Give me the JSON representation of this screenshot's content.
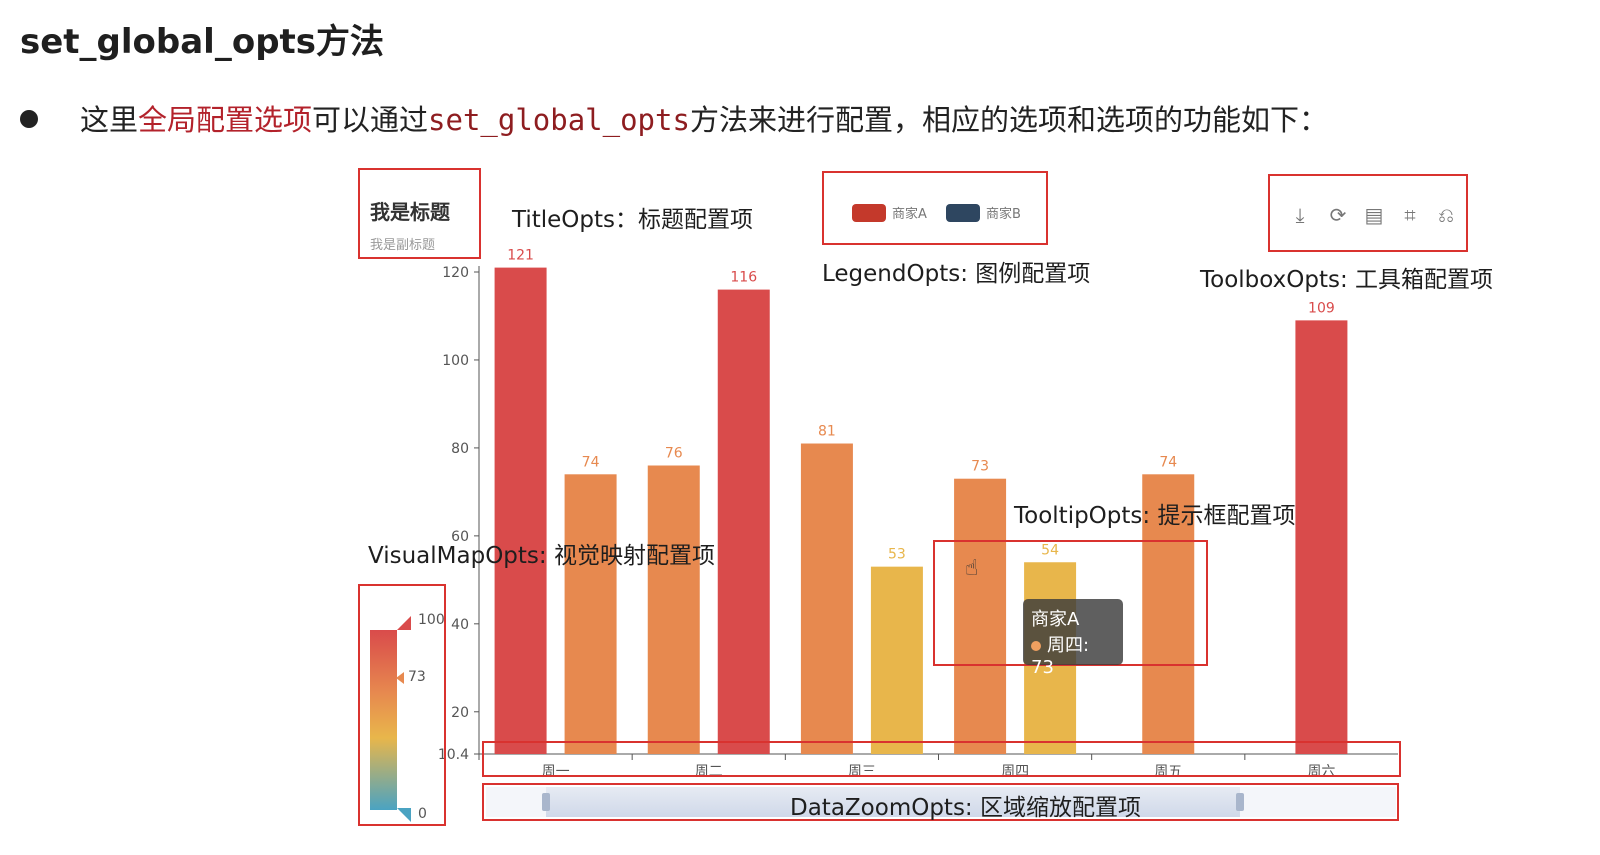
{
  "heading": "set_global_opts方法",
  "bullet": {
    "part1": "这里",
    "highlight": "全局配置选项",
    "part2": "可以通过",
    "code": "set_global_opts",
    "part3": "方法来进行配置，相应的选项和选项的功能如下："
  },
  "captions": {
    "title_opts": "TitleOpts：标题配置项",
    "legend_opts": "LegendOpts: 图例配置项",
    "toolbox_opts": "ToolboxOpts: 工具箱配置项",
    "tooltip_opts": "TooltipOpts: 提示框配置项",
    "visualmap_opts": "VisualMapOpts: 视觉映射配置项",
    "datazoom_opts": "DataZoomOpts: 区域缩放配置项"
  },
  "chart_title": {
    "main": "我是标题",
    "sub": "我是副标题"
  },
  "legend": [
    "商家A",
    "商家B"
  ],
  "toolbox_icons": [
    "download-icon",
    "refresh-icon",
    "data-view-icon",
    "zoom-icon",
    "zoom-reset-icon"
  ],
  "tooltip": {
    "series": "商家A",
    "line": "周四: 73"
  },
  "visual_map": {
    "max_label": "100",
    "min_label": "0",
    "current": "73"
  },
  "chart_data": {
    "type": "bar",
    "categories": [
      "周一",
      "周二",
      "周三",
      "周四",
      "周五",
      "周六"
    ],
    "series": [
      {
        "name": "商家A",
        "values": [
          121,
          76,
          81,
          73,
          74,
          109
        ]
      },
      {
        "name": "商家B",
        "values": [
          74,
          116,
          53,
          54,
          null,
          null
        ]
      }
    ],
    "y_ticks": [
      "10.4",
      "20",
      "40",
      "60",
      "80",
      "100",
      "120"
    ],
    "ylim": [
      10.4,
      120
    ],
    "colors": {
      "high": "#d94b4b",
      "mid": "#e7894f",
      "low": "#e8b64b",
      "bottom": "#4aa3c2"
    }
  }
}
